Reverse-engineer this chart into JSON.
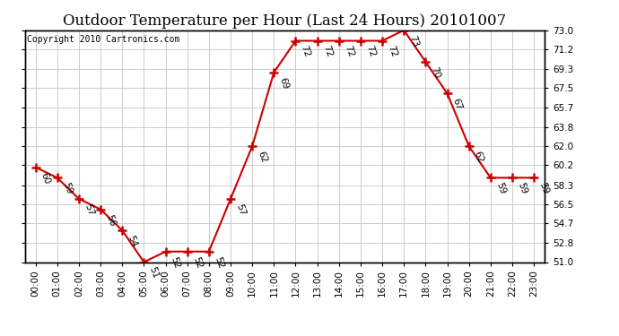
{
  "title": "Outdoor Temperature per Hour (Last 24 Hours) 20101007",
  "copyright_text": "Copyright 2010 Cartronics.com",
  "hours": [
    "00:00",
    "01:00",
    "02:00",
    "03:00",
    "04:00",
    "05:00",
    "06:00",
    "07:00",
    "08:00",
    "09:00",
    "10:00",
    "11:00",
    "12:00",
    "13:00",
    "14:00",
    "15:00",
    "16:00",
    "17:00",
    "18:00",
    "19:00",
    "20:00",
    "21:00",
    "22:00",
    "23:00"
  ],
  "temperatures": [
    60,
    59,
    57,
    56,
    54,
    51,
    52,
    52,
    52,
    57,
    62,
    69,
    72,
    72,
    72,
    72,
    72,
    73,
    70,
    67,
    62,
    59,
    59,
    59
  ],
  "line_color": "#cc0000",
  "marker_color": "#cc0000",
  "bg_color": "#ffffff",
  "grid_color": "#cccccc",
  "ylim_min": 51.0,
  "ylim_max": 73.0,
  "yticks": [
    51.0,
    52.8,
    54.7,
    56.5,
    58.3,
    60.2,
    62.0,
    63.8,
    65.7,
    67.5,
    69.3,
    71.2,
    73.0
  ],
  "title_fontsize": 12,
  "copyright_fontsize": 7,
  "label_fontsize": 7.5,
  "tick_fontsize": 7.5
}
